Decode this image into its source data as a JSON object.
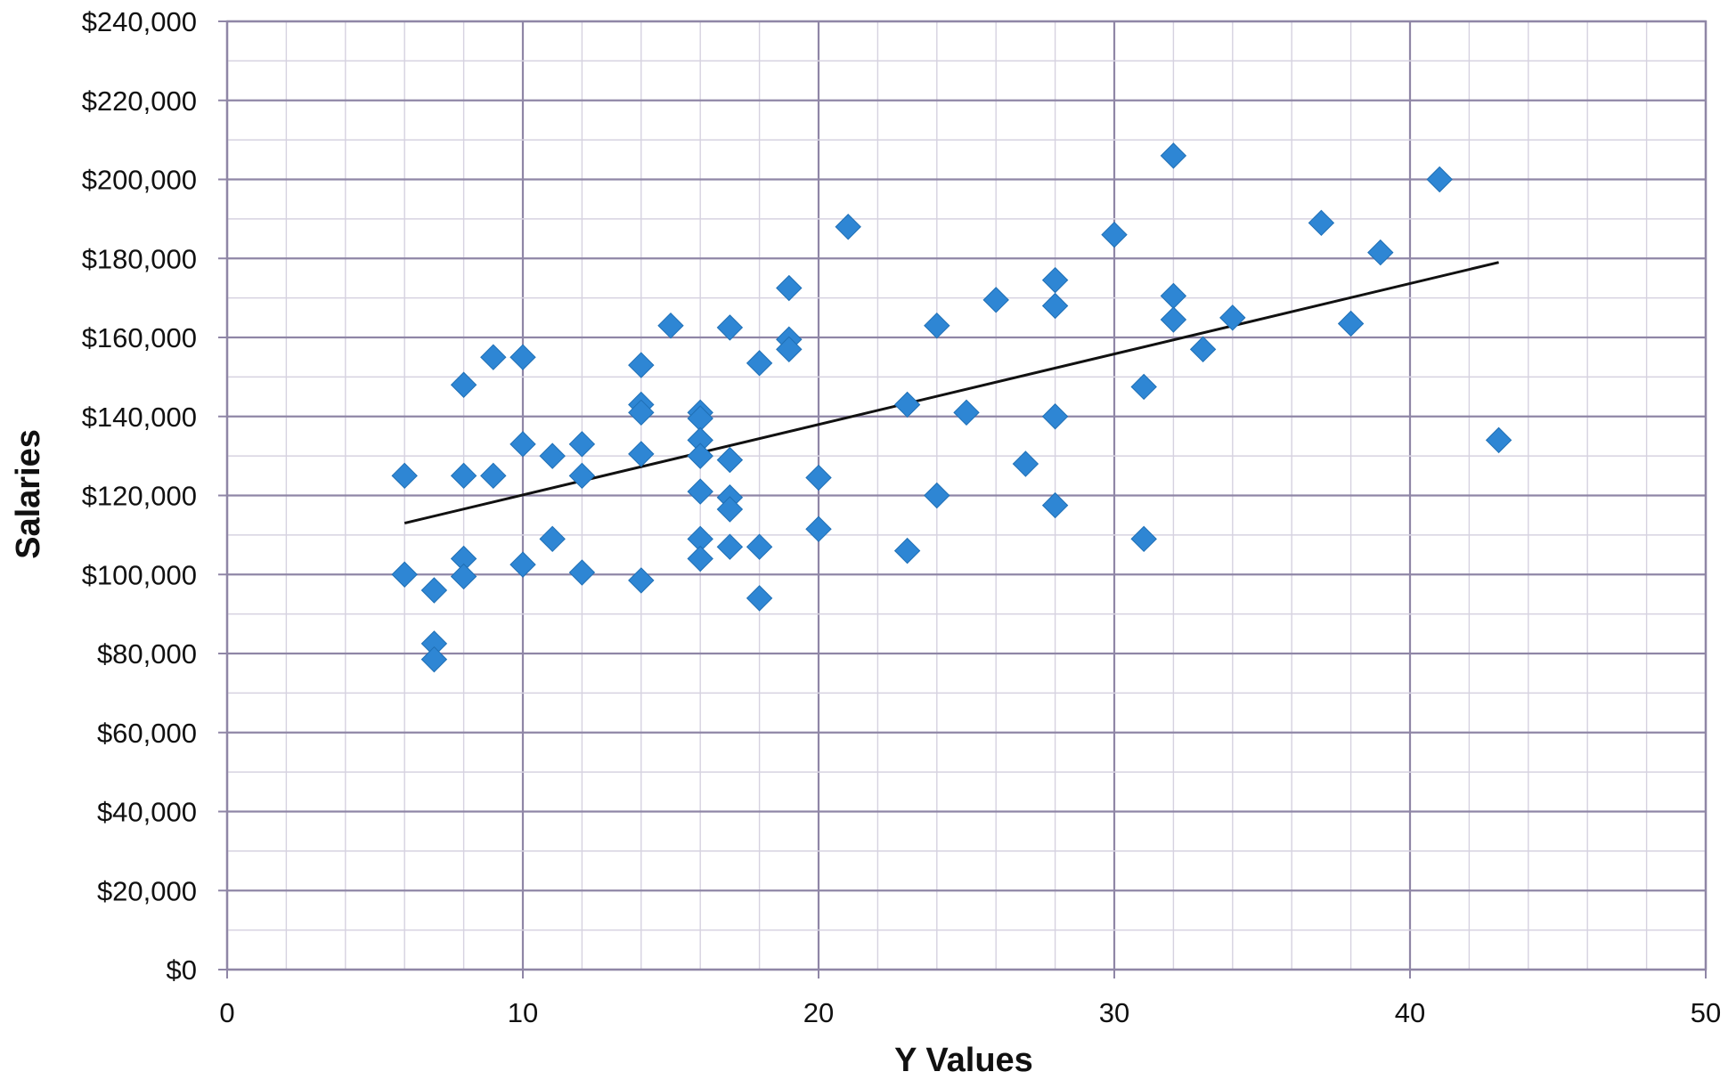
{
  "chart_data": {
    "type": "scatter",
    "xlabel": "Y Values",
    "ylabel": "Salaries",
    "xlim": [
      0,
      50
    ],
    "ylim": [
      0,
      240000
    ],
    "x_ticks": [
      "0",
      "10",
      "20",
      "30",
      "40",
      "50"
    ],
    "y_ticks": [
      "$0",
      "$20,000",
      "$40,000",
      "$60,000",
      "$80,000",
      "$100,000",
      "$120,000",
      "$140,000",
      "$160,000",
      "$180,000",
      "$200,000",
      "$220,000",
      "$240,000"
    ],
    "grid": true,
    "marker_color": "#2e86d4",
    "trendline_color": "#111111",
    "trendline": {
      "x": [
        6,
        43
      ],
      "y": [
        113000,
        179000
      ]
    },
    "points": [
      {
        "x": 6,
        "y": 125000
      },
      {
        "x": 6,
        "y": 100000
      },
      {
        "x": 7,
        "y": 96000
      },
      {
        "x": 7,
        "y": 82500
      },
      {
        "x": 7,
        "y": 78500
      },
      {
        "x": 8,
        "y": 148000
      },
      {
        "x": 8,
        "y": 125000
      },
      {
        "x": 8,
        "y": 104000
      },
      {
        "x": 8,
        "y": 99500
      },
      {
        "x": 9,
        "y": 155000
      },
      {
        "x": 9,
        "y": 125000
      },
      {
        "x": 10,
        "y": 155000
      },
      {
        "x": 10,
        "y": 133000
      },
      {
        "x": 10,
        "y": 102500
      },
      {
        "x": 11,
        "y": 130000
      },
      {
        "x": 11,
        "y": 109000
      },
      {
        "x": 12,
        "y": 133000
      },
      {
        "x": 12,
        "y": 125000
      },
      {
        "x": 12,
        "y": 100500
      },
      {
        "x": 14,
        "y": 153000
      },
      {
        "x": 14,
        "y": 143000
      },
      {
        "x": 14,
        "y": 141000
      },
      {
        "x": 14,
        "y": 130500
      },
      {
        "x": 14,
        "y": 98500
      },
      {
        "x": 15,
        "y": 163000
      },
      {
        "x": 16,
        "y": 141000
      },
      {
        "x": 16,
        "y": 139500
      },
      {
        "x": 16,
        "y": 134000
      },
      {
        "x": 16,
        "y": 130000
      },
      {
        "x": 16,
        "y": 121000
      },
      {
        "x": 16,
        "y": 109000
      },
      {
        "x": 16,
        "y": 104000
      },
      {
        "x": 17,
        "y": 162500
      },
      {
        "x": 17,
        "y": 129000
      },
      {
        "x": 17,
        "y": 119500
      },
      {
        "x": 17,
        "y": 116500
      },
      {
        "x": 17,
        "y": 107000
      },
      {
        "x": 18,
        "y": 153500
      },
      {
        "x": 18,
        "y": 107000
      },
      {
        "x": 18,
        "y": 94000
      },
      {
        "x": 19,
        "y": 172500
      },
      {
        "x": 19,
        "y": 159500
      },
      {
        "x": 19,
        "y": 157000
      },
      {
        "x": 20,
        "y": 124500
      },
      {
        "x": 20,
        "y": 111500
      },
      {
        "x": 21,
        "y": 188000
      },
      {
        "x": 23,
        "y": 143000
      },
      {
        "x": 23,
        "y": 106000
      },
      {
        "x": 24,
        "y": 163000
      },
      {
        "x": 24,
        "y": 120000
      },
      {
        "x": 25,
        "y": 141000
      },
      {
        "x": 26,
        "y": 169500
      },
      {
        "x": 27,
        "y": 128000
      },
      {
        "x": 28,
        "y": 174500
      },
      {
        "x": 28,
        "y": 168000
      },
      {
        "x": 28,
        "y": 140000
      },
      {
        "x": 28,
        "y": 117500
      },
      {
        "x": 30,
        "y": 186000
      },
      {
        "x": 31,
        "y": 147500
      },
      {
        "x": 31,
        "y": 109000
      },
      {
        "x": 32,
        "y": 206000
      },
      {
        "x": 32,
        "y": 170500
      },
      {
        "x": 32,
        "y": 164500
      },
      {
        "x": 33,
        "y": 157000
      },
      {
        "x": 34,
        "y": 165000
      },
      {
        "x": 37,
        "y": 189000
      },
      {
        "x": 38,
        "y": 163500
      },
      {
        "x": 39,
        "y": 181500
      },
      {
        "x": 41,
        "y": 200000
      },
      {
        "x": 43,
        "y": 134000
      }
    ]
  }
}
